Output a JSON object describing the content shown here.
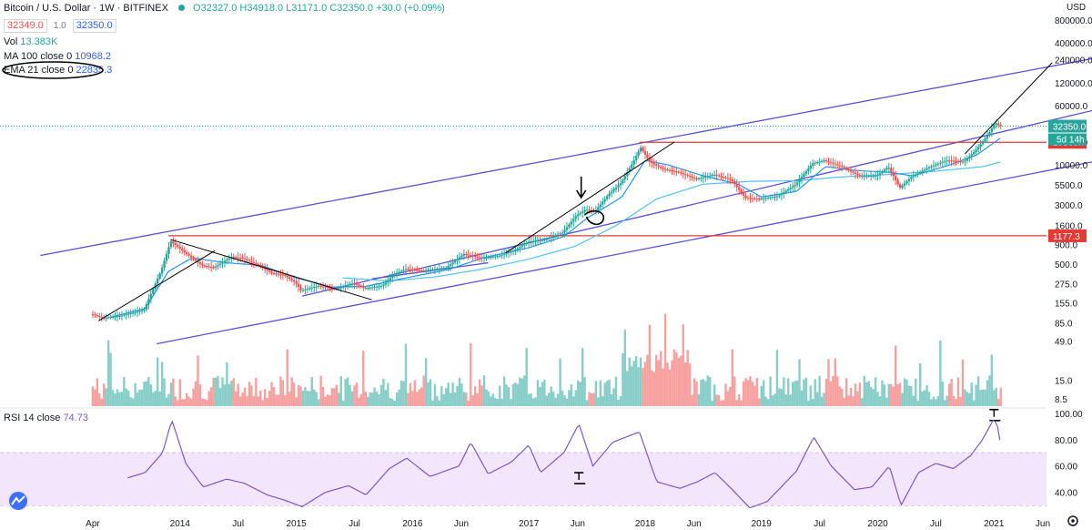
{
  "header": {
    "symbol": "Bitcoin / U.S. Dollar · 1W · BITFINEX",
    "ohlc": "O32327.0 H34918.0 L31171.0 C32350.0 +30.0 (+0.09%)",
    "bid": "32349.0",
    "spread": "1.0",
    "ask": "32350.0"
  },
  "indicators": {
    "vol_label": "Vol",
    "vol_value": "13.383K",
    "ma_label": "MA 100 close 0",
    "ma_value": "10968.2",
    "ema_label": "EMA 21 close 0",
    "ema_value": "22835.3",
    "rsi_label": "RSI 14 close",
    "rsi_value": "74.73"
  },
  "colors": {
    "up": "#26a69a",
    "down": "#ef5350",
    "channel": "#5b4fd6",
    "ema": "#2196f3",
    "ma": "#4fc3f7",
    "rsi_line": "#7e57c2",
    "rsi_band": "#f3e5fb",
    "level": "#e53935",
    "trend": "#000000"
  },
  "chart_data": {
    "type": "line",
    "symbol": "BTCUSD",
    "interval": "1W",
    "currency": "USD",
    "yscale": "log",
    "price_axis_labels": [
      "800000.0",
      "400000.0",
      "240000.0",
      "120000.0",
      "60000.0",
      "20000.0",
      "10000.0",
      "5500.0",
      "3000.0",
      "1600.0",
      "900.0",
      "500.0",
      "275.0",
      "155.0",
      "85.0",
      "49.0",
      "15.0",
      "8.5"
    ],
    "time_axis_labels": [
      "Apr",
      "2014",
      "Jul",
      "2015",
      "Jul",
      "2016",
      "Jun",
      "2017",
      "Jun",
      "2018",
      "Jun",
      "2019",
      "Jul",
      "2020",
      "Jul",
      "2021",
      "Jun"
    ],
    "rsi_axis_labels": [
      "100.00",
      "80.00",
      "60.00",
      "40.00"
    ],
    "last_price": "32350.0",
    "countdown": "5d 14h",
    "levels": [
      "19863.7",
      "1177.3"
    ],
    "rsi_band": [
      30,
      70
    ],
    "rsi_last": 74.73,
    "price_path": [
      [
        2013.25,
        110
      ],
      [
        2013.35,
        98
      ],
      [
        2013.5,
        105
      ],
      [
        2013.7,
        125
      ],
      [
        2013.85,
        420
      ],
      [
        2013.93,
        1000
      ],
      [
        2014.0,
        820
      ],
      [
        2014.1,
        620
      ],
      [
        2014.2,
        480
      ],
      [
        2014.3,
        450
      ],
      [
        2014.45,
        620
      ],
      [
        2014.55,
        600
      ],
      [
        2014.7,
        470
      ],
      [
        2014.8,
        380
      ],
      [
        2014.9,
        360
      ],
      [
        2015.0,
        290
      ],
      [
        2015.05,
        225
      ],
      [
        2015.2,
        260
      ],
      [
        2015.35,
        235
      ],
      [
        2015.5,
        280
      ],
      [
        2015.6,
        240
      ],
      [
        2015.75,
        260
      ],
      [
        2015.85,
        370
      ],
      [
        2015.95,
        430
      ],
      [
        2016.1,
        410
      ],
      [
        2016.3,
        450
      ],
      [
        2016.45,
        680
      ],
      [
        2016.6,
        600
      ],
      [
        2016.75,
        640
      ],
      [
        2016.9,
        780
      ],
      [
        2017.0,
        980
      ],
      [
        2017.15,
        1050
      ],
      [
        2017.3,
        1300
      ],
      [
        2017.42,
        2200
      ],
      [
        2017.5,
        2600
      ],
      [
        2017.58,
        2500
      ],
      [
        2017.7,
        4200
      ],
      [
        2017.8,
        5800
      ],
      [
        2017.9,
        10500
      ],
      [
        2017.97,
        17000
      ],
      [
        2018.05,
        11000
      ],
      [
        2018.15,
        9000
      ],
      [
        2018.3,
        8000
      ],
      [
        2018.45,
        6500
      ],
      [
        2018.6,
        7500
      ],
      [
        2018.75,
        6400
      ],
      [
        2018.87,
        3700
      ],
      [
        2019.0,
        3600
      ],
      [
        2019.15,
        3900
      ],
      [
        2019.3,
        5500
      ],
      [
        2019.45,
        10500
      ],
      [
        2019.55,
        11500
      ],
      [
        2019.7,
        9500
      ],
      [
        2019.85,
        7200
      ],
      [
        2020.0,
        7200
      ],
      [
        2020.1,
        9500
      ],
      [
        2020.2,
        5000
      ],
      [
        2020.3,
        7000
      ],
      [
        2020.45,
        9300
      ],
      [
        2020.6,
        11500
      ],
      [
        2020.75,
        11000
      ],
      [
        2020.85,
        15500
      ],
      [
        2020.95,
        24000
      ],
      [
        2021.02,
        36000
      ],
      [
        2021.06,
        32350
      ]
    ],
    "ema21_path": [
      [
        2013.4,
        100
      ],
      [
        2013.7,
        130
      ],
      [
        2013.9,
        400
      ],
      [
        2014.1,
        600
      ],
      [
        2014.4,
        520
      ],
      [
        2014.7,
        480
      ],
      [
        2015.0,
        330
      ],
      [
        2015.3,
        250
      ],
      [
        2015.6,
        255
      ],
      [
        2015.9,
        320
      ],
      [
        2016.3,
        420
      ],
      [
        2016.6,
        600
      ],
      [
        2017.0,
        820
      ],
      [
        2017.3,
        1150
      ],
      [
        2017.5,
        2000
      ],
      [
        2017.8,
        3800
      ],
      [
        2018.0,
        11500
      ],
      [
        2018.2,
        10000
      ],
      [
        2018.5,
        7200
      ],
      [
        2018.8,
        5600
      ],
      [
        2019.0,
        3800
      ],
      [
        2019.3,
        4500
      ],
      [
        2019.55,
        9500
      ],
      [
        2019.8,
        8500
      ],
      [
        2020.1,
        8000
      ],
      [
        2020.3,
        7200
      ],
      [
        2020.6,
        9800
      ],
      [
        2020.85,
        13500
      ],
      [
        2021.06,
        22835
      ]
    ],
    "ma100_path": [
      [
        2015.4,
        330
      ],
      [
        2015.8,
        300
      ],
      [
        2016.2,
        340
      ],
      [
        2016.6,
        430
      ],
      [
        2017.0,
        580
      ],
      [
        2017.4,
        860
      ],
      [
        2017.75,
        1600
      ],
      [
        2018.1,
        3600
      ],
      [
        2018.5,
        5600
      ],
      [
        2018.9,
        6100
      ],
      [
        2019.3,
        6200
      ],
      [
        2019.7,
        7000
      ],
      [
        2020.1,
        7500
      ],
      [
        2020.5,
        8300
      ],
      [
        2020.9,
        9500
      ],
      [
        2021.06,
        10968
      ]
    ],
    "rsi_path": [
      [
        2013.55,
        51
      ],
      [
        2013.7,
        55
      ],
      [
        2013.85,
        70
      ],
      [
        2013.93,
        95
      ],
      [
        2014.05,
        62
      ],
      [
        2014.2,
        44
      ],
      [
        2014.4,
        50
      ],
      [
        2014.55,
        47
      ],
      [
        2014.75,
        38
      ],
      [
        2014.9,
        34
      ],
      [
        2015.05,
        29
      ],
      [
        2015.25,
        40
      ],
      [
        2015.45,
        45
      ],
      [
        2015.6,
        38
      ],
      [
        2015.8,
        58
      ],
      [
        2015.95,
        66
      ],
      [
        2016.15,
        52
      ],
      [
        2016.4,
        60
      ],
      [
        2016.5,
        78
      ],
      [
        2016.65,
        54
      ],
      [
        2016.85,
        63
      ],
      [
        2017.0,
        76
      ],
      [
        2017.1,
        55
      ],
      [
        2017.3,
        70
      ],
      [
        2017.43,
        92
      ],
      [
        2017.55,
        60
      ],
      [
        2017.72,
        78
      ],
      [
        2017.95,
        86
      ],
      [
        2018.1,
        48
      ],
      [
        2018.3,
        43
      ],
      [
        2018.45,
        48
      ],
      [
        2018.6,
        55
      ],
      [
        2018.75,
        42
      ],
      [
        2018.9,
        28
      ],
      [
        2019.05,
        33
      ],
      [
        2019.3,
        56
      ],
      [
        2019.45,
        82
      ],
      [
        2019.6,
        60
      ],
      [
        2019.8,
        42
      ],
      [
        2019.95,
        44
      ],
      [
        2020.1,
        60
      ],
      [
        2020.2,
        30
      ],
      [
        2020.35,
        55
      ],
      [
        2020.5,
        62
      ],
      [
        2020.65,
        58
      ],
      [
        2020.8,
        68
      ],
      [
        2020.9,
        80
      ],
      [
        2021.0,
        96
      ],
      [
        2021.03,
        90
      ],
      [
        2021.06,
        74.73
      ]
    ],
    "channels": [
      {
        "from": [
          2012.8,
          650
        ],
        "to": [
          2021.85,
          250000
        ]
      },
      {
        "from": [
          2015.05,
          190
        ],
        "to": [
          2021.85,
          52000
        ]
      },
      {
        "from": [
          2013.8,
          45
        ],
        "to": [
          2021.85,
          11000
        ]
      },
      {
        "from": [
          2015.65,
          320
        ],
        "to": [
          2016.65,
          520
        ]
      }
    ],
    "trendlines": [
      {
        "from": [
          2013.3,
          90
        ],
        "to": [
          2014.3,
          750
        ]
      },
      {
        "from": [
          2013.92,
          1050
        ],
        "to": [
          2015.65,
          170
        ]
      },
      {
        "from": [
          2016.8,
          700
        ],
        "to": [
          2018.25,
          20000
        ]
      },
      {
        "from": [
          2020.75,
          14000
        ],
        "to": [
          2021.5,
          220000
        ]
      }
    ]
  }
}
